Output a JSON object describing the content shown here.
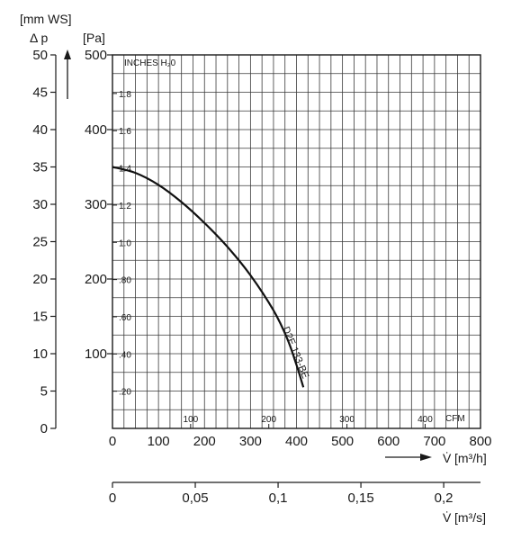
{
  "chart_data": {
    "type": "line",
    "x_unit": "[m³/h]",
    "x_symbol": "V̇",
    "xlim": [
      0,
      800
    ],
    "x_ticks": [
      "0",
      "100",
      "200",
      "300",
      "400",
      "500",
      "600",
      "700",
      "800"
    ],
    "y_unit": "[Pa]",
    "ylim": [
      0,
      500
    ],
    "y_ticks": [
      "100",
      "200",
      "300",
      "400",
      "500"
    ],
    "y2_unit": "[mm WS]",
    "y2_symbol": "Δ p",
    "y2_ticks": [
      "0",
      "5",
      "10",
      "15",
      "20",
      "25",
      "30",
      "35",
      "40",
      "45",
      "50"
    ],
    "inner_y_unit": "INCHES H₂0",
    "inner_y_ticks": [
      "1.8",
      "1.6",
      "1.4",
      "1.2",
      "1.0",
      ".80",
      ".60",
      ".40",
      ".20"
    ],
    "inner_x_unit": "CFM",
    "inner_x_ticks": [
      "100",
      "200",
      "300",
      "400"
    ],
    "x2_unit": "[m³/s]",
    "x2_symbol": "V̇",
    "x2_ticks": [
      "0",
      "0,05",
      "0,1",
      "0,15",
      "0,2"
    ],
    "grid": true,
    "series": [
      {
        "name": "D2E 133-BE",
        "x": [
          0,
          50,
          100,
          150,
          200,
          250,
          300,
          350,
          380,
          400,
          415
        ],
        "y": [
          350,
          342,
          326,
          303,
          275,
          243,
          205,
          158,
          120,
          85,
          55
        ]
      }
    ]
  }
}
